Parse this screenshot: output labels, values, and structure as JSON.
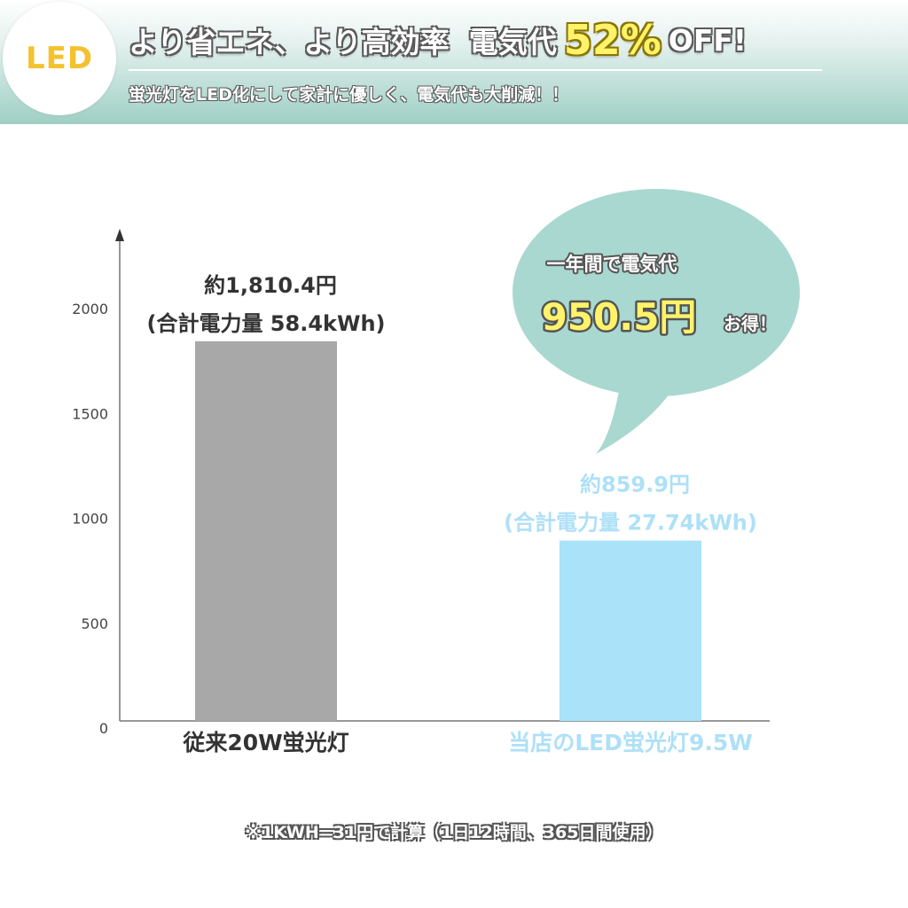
{
  "banner": {
    "badge": "LED",
    "headline": "より省エネ、より高効率",
    "headline_cost": "電気代",
    "headline_percent": "52%",
    "headline_off": "OFF!",
    "subline": "蛍光灯をLED化にして家計に優しく、電気代も大削減！！"
  },
  "bubble": {
    "line1": "一年間で電気代",
    "amount": "950.5円",
    "suffix": "お得！"
  },
  "chart_data": {
    "type": "bar",
    "categories": [
      "従来20W蛍光灯",
      "当店のLED蛍光灯9.5W"
    ],
    "values": [
      1810.4,
      859.9
    ],
    "ylim": [
      0,
      2000
    ],
    "yticks": [
      0,
      500,
      1000,
      1500,
      2000
    ],
    "ytick_labels": [
      "0",
      "500",
      "1000",
      "1500",
      "2000"
    ],
    "data_labels": [
      {
        "price": "約1,810.4円",
        "energy": "(合計電力量 58.4kWh)"
      },
      {
        "price": "約859.9円",
        "energy": "(合計電力量 27.74kWh)"
      }
    ],
    "colors": [
      "#a8a8a8",
      "#aae2fa"
    ],
    "label_colors": [
      "#333333",
      "#aee0f8"
    ],
    "grid": false,
    "legend": "none"
  },
  "footnote": "※1KWH=31円で計算（1日12時間、365日間使用）"
}
